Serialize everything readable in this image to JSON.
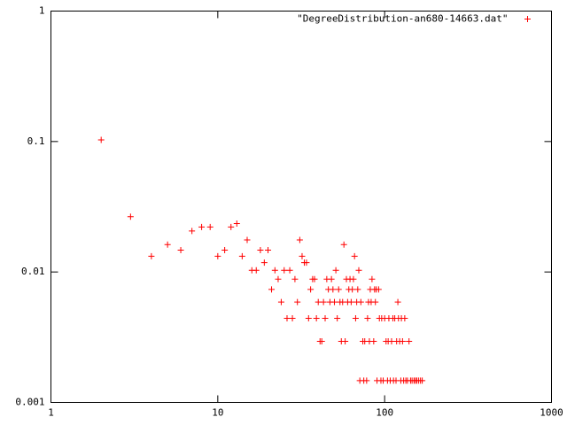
{
  "chart_data": {
    "type": "scatter",
    "xscale": "log",
    "yscale": "log",
    "legend": "top-right",
    "xlim": [
      1,
      1000
    ],
    "ylim": [
      0.001,
      1
    ],
    "xticks": [
      1,
      10,
      100,
      1000
    ],
    "yticks": [
      0.001,
      0.01,
      0.1,
      1
    ],
    "series": [
      {
        "name": "\"DegreeDistribution-an680-14663.dat\"",
        "color": "#ff0000",
        "x": [
          2,
          3,
          4,
          5,
          6,
          7,
          8,
          9,
          10,
          11,
          12,
          13,
          14,
          15,
          16,
          17,
          18,
          19,
          20,
          21,
          22,
          23,
          24,
          25,
          26,
          27,
          28,
          29,
          30,
          31,
          32,
          33,
          34,
          35,
          36,
          37,
          38,
          39,
          40,
          41,
          42,
          43,
          44,
          45,
          46,
          47,
          48,
          49,
          50,
          51,
          52,
          53,
          54,
          55,
          56,
          57,
          58,
          59,
          60,
          61,
          62,
          63,
          64,
          65,
          66,
          67,
          68,
          69,
          70,
          71,
          72,
          74,
          75,
          76,
          78,
          79,
          80,
          81,
          82,
          83,
          84,
          86,
          87,
          88,
          89,
          90,
          92,
          93,
          95,
          96,
          98,
          100,
          102,
          104,
          105,
          106,
          108,
          110,
          112,
          113,
          115,
          117,
          118,
          120,
          121,
          123,
          125,
          126,
          128,
          130,
          132,
          134,
          137,
          140,
          143,
          146,
          150,
          153,
          156,
          160,
          164,
          168
        ],
        "values": [
          0.103,
          0.0265,
          0.0132,
          0.0162,
          0.0147,
          0.0206,
          0.0221,
          0.0221,
          0.0132,
          0.0147,
          0.0221,
          0.0235,
          0.0132,
          0.0176,
          0.0103,
          0.0103,
          0.0147,
          0.0118,
          0.0147,
          0.00735,
          0.0103,
          0.00882,
          0.00588,
          0.0103,
          0.00441,
          0.0103,
          0.00441,
          0.00882,
          0.00588,
          0.0176,
          0.0132,
          0.0118,
          0.0118,
          0.00441,
          0.00735,
          0.00882,
          0.00882,
          0.00441,
          0.00588,
          0.00294,
          0.00294,
          0.00588,
          0.00441,
          0.00882,
          0.00735,
          0.00588,
          0.00882,
          0.00735,
          0.00588,
          0.0103,
          0.00441,
          0.00735,
          0.00588,
          0.00294,
          0.00588,
          0.0162,
          0.00294,
          0.00882,
          0.00588,
          0.00735,
          0.00882,
          0.00588,
          0.00735,
          0.00882,
          0.0132,
          0.00441,
          0.00588,
          0.00735,
          0.0103,
          0.00147,
          0.00588,
          0.00294,
          0.00147,
          0.00294,
          0.00147,
          0.00441,
          0.00588,
          0.00294,
          0.00735,
          0.00588,
          0.00882,
          0.00294,
          0.00735,
          0.00588,
          0.00735,
          0.00147,
          0.00735,
          0.00441,
          0.00147,
          0.00441,
          0.00147,
          0.00441,
          0.00294,
          0.00147,
          0.00294,
          0.00441,
          0.00147,
          0.00294,
          0.00441,
          0.00147,
          0.00441,
          0.00147,
          0.00294,
          0.00588,
          0.00441,
          0.00294,
          0.00147,
          0.00441,
          0.00294,
          0.00147,
          0.00441,
          0.00147,
          0.00147,
          0.00294,
          0.00147,
          0.00147,
          0.00147,
          0.00147,
          0.00147,
          0.00147,
          0.00147,
          0.00147
        ]
      }
    ]
  }
}
